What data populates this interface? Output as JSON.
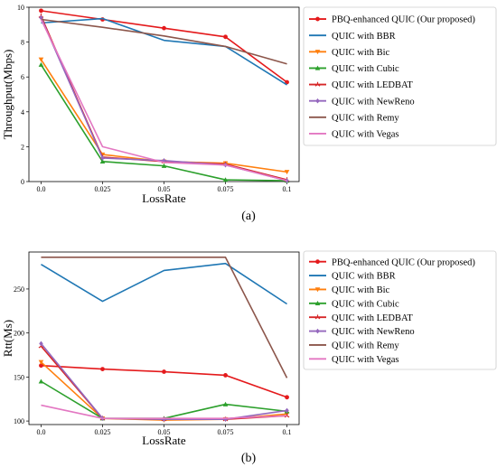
{
  "chart_data": [
    {
      "type": "line",
      "panel_label": "(a)",
      "xlabel": "LossRate",
      "ylabel": "Throughput(Mbps)",
      "x": [
        0.0,
        0.025,
        0.05,
        0.075,
        0.1
      ],
      "x_tick_labels": [
        "0.0",
        "0.025",
        "0.05",
        "0.075",
        "0.1"
      ],
      "ylim": [
        0,
        10
      ],
      "y_ticks": [
        0,
        2,
        4,
        6,
        8,
        10
      ],
      "grid": false,
      "legend_position": "outside-right",
      "series": [
        {
          "name": "PBQ-enhanced QUIC (Our proposed)",
          "color": "#e41a1c",
          "marker": "circle",
          "values": [
            9.8,
            9.3,
            8.8,
            8.3,
            5.7
          ]
        },
        {
          "name": "QUIC with BBR",
          "color": "#1f77b4",
          "marker": "none",
          "values": [
            9.1,
            9.35,
            8.1,
            7.75,
            5.55
          ]
        },
        {
          "name": "QUIC with Bic",
          "color": "#ff7f0e",
          "marker": "triangle-down",
          "values": [
            7.0,
            1.55,
            1.15,
            1.05,
            0.55
          ]
        },
        {
          "name": "QUIC with Cubic",
          "color": "#2ca02c",
          "marker": "triangle-up",
          "values": [
            6.7,
            1.15,
            0.9,
            0.1,
            0.05
          ]
        },
        {
          "name": "QUIC with LEDBAT",
          "color": "#d62728",
          "marker": "tri",
          "values": [
            9.5,
            1.4,
            1.15,
            1.0,
            0.1
          ]
        },
        {
          "name": "QUIC with NewReno",
          "color": "#9467bd",
          "marker": "diamond",
          "values": [
            9.4,
            1.35,
            1.2,
            0.95,
            0.05
          ]
        },
        {
          "name": "QUIC with Remy",
          "color": "#8c564b",
          "marker": "none",
          "values": [
            9.3,
            8.85,
            8.35,
            7.75,
            6.75
          ]
        },
        {
          "name": "QUIC with Vegas",
          "color": "#e377c2",
          "marker": "none",
          "values": [
            9.3,
            2.0,
            1.1,
            0.95,
            0.05
          ]
        }
      ]
    },
    {
      "type": "line",
      "panel_label": "(b)",
      "xlabel": "LossRate",
      "ylabel": "Rtt(Ms)",
      "x": [
        0.0,
        0.025,
        0.05,
        0.075,
        0.1
      ],
      "x_tick_labels": [
        "0.0",
        "0.025",
        "0.05",
        "0.075",
        "0.1"
      ],
      "ylim": [
        96,
        292
      ],
      "y_ticks": [
        100,
        150,
        200,
        250
      ],
      "grid": false,
      "legend_position": "outside-right",
      "series": [
        {
          "name": "PBQ-enhanced QUIC (Our proposed)",
          "color": "#e41a1c",
          "marker": "circle",
          "values": [
            163,
            159,
            156,
            152,
            127
          ]
        },
        {
          "name": "QUIC with BBR",
          "color": "#1f77b4",
          "marker": "none",
          "values": [
            278,
            236,
            271,
            279,
            233
          ]
        },
        {
          "name": "QUIC with Bic",
          "color": "#ff7f0e",
          "marker": "triangle-down",
          "values": [
            167,
            103,
            101,
            102,
            108
          ]
        },
        {
          "name": "QUIC with Cubic",
          "color": "#2ca02c",
          "marker": "triangle-up",
          "values": [
            145,
            103,
            103,
            119,
            111
          ]
        },
        {
          "name": "QUIC with LEDBAT",
          "color": "#d62728",
          "marker": "tri",
          "values": [
            185,
            103,
            102,
            102,
            106
          ]
        },
        {
          "name": "QUIC with NewReno",
          "color": "#9467bd",
          "marker": "diamond",
          "values": [
            188,
            103,
            102,
            102,
            112
          ]
        },
        {
          "name": "QUIC with Remy",
          "color": "#8c564b",
          "marker": "none",
          "values": [
            286,
            286,
            286,
            286,
            149
          ]
        },
        {
          "name": "QUIC with Vegas",
          "color": "#e377c2",
          "marker": "none",
          "values": [
            118,
            103,
            103,
            103,
            106
          ]
        }
      ]
    }
  ]
}
